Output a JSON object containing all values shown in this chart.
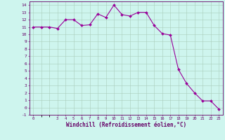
{
  "x": [
    0,
    1,
    2,
    3,
    4,
    5,
    6,
    7,
    8,
    9,
    10,
    11,
    12,
    13,
    14,
    15,
    16,
    17,
    18,
    19,
    20,
    21,
    22,
    23
  ],
  "y": [
    11.0,
    11.0,
    11.0,
    10.8,
    12.0,
    12.0,
    11.2,
    11.3,
    12.8,
    12.3,
    14.0,
    12.7,
    12.5,
    13.0,
    13.0,
    11.2,
    10.1,
    9.9,
    5.2,
    3.3,
    2.0,
    0.9,
    0.9,
    -0.2
  ],
  "line_color": "#990099",
  "marker_color": "#990099",
  "bg_color": "#cef5ee",
  "grid_color": "#aaccbb",
  "axis_color": "#660066",
  "text_color": "#660066",
  "xlabel": "Windchill (Refroidissement éolien,°C)",
  "xlim": [
    -0.5,
    23.5
  ],
  "ylim": [
    -1,
    14.5
  ],
  "yticks": [
    -1,
    0,
    1,
    2,
    3,
    4,
    5,
    6,
    7,
    8,
    9,
    10,
    11,
    12,
    13,
    14
  ],
  "xticks": [
    0,
    3,
    4,
    5,
    6,
    7,
    8,
    9,
    10,
    11,
    12,
    13,
    14,
    15,
    16,
    17,
    18,
    19,
    20,
    21,
    22,
    23
  ]
}
